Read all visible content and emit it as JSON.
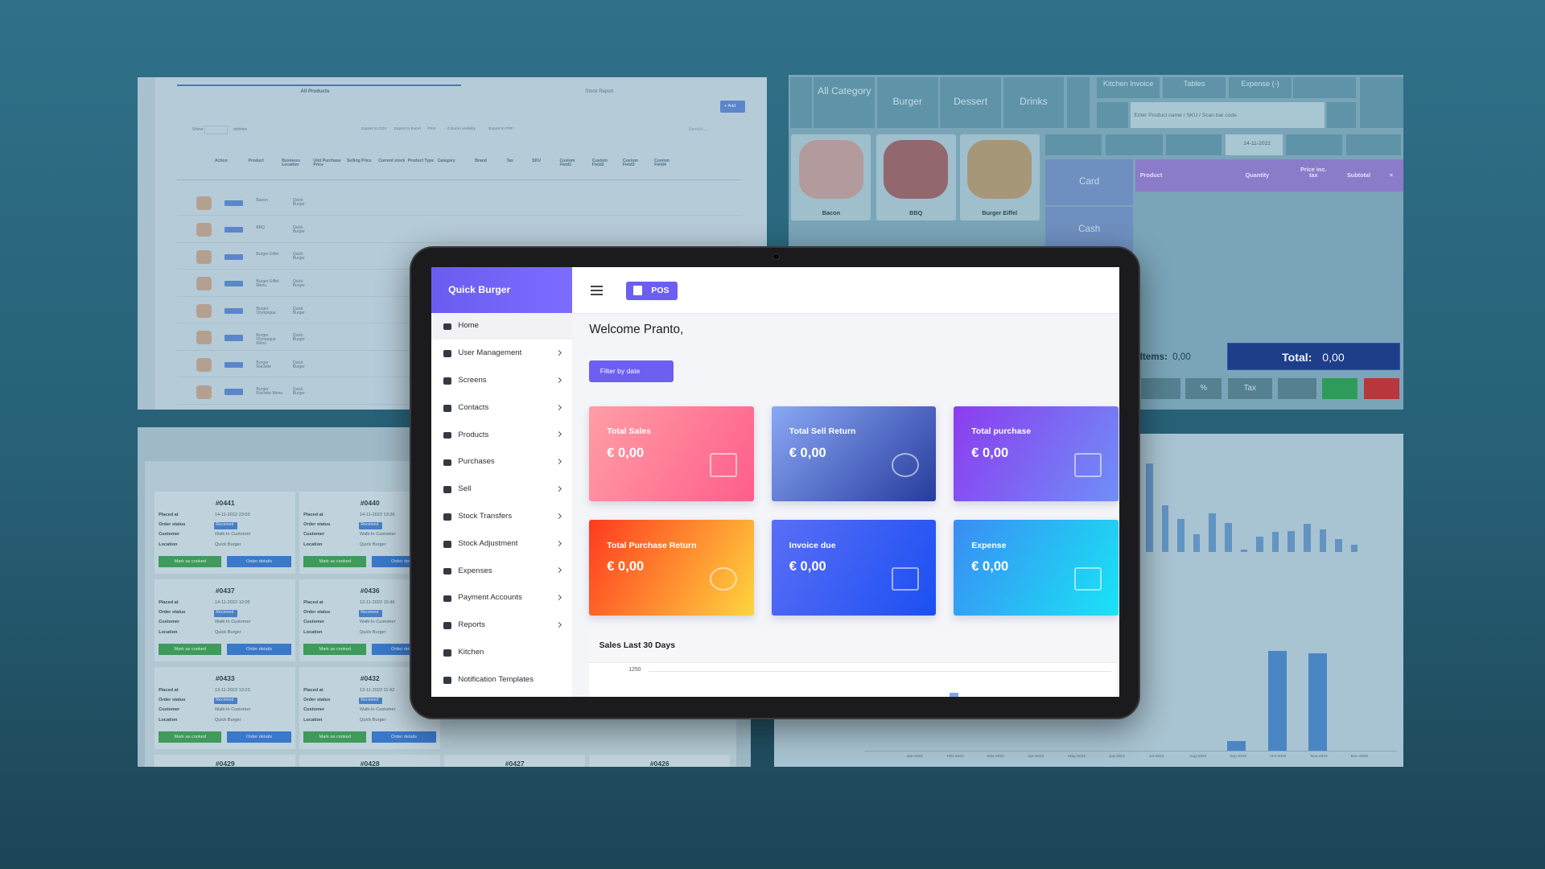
{
  "background_panels": {
    "products": {
      "tabs": [
        "All Products",
        "Stock Report"
      ],
      "add_button": "+ Add",
      "show": "Show",
      "entries": "entries",
      "export": [
        "Export to CSV",
        "Export to Excel",
        "Print",
        "Column visibility",
        "Export to PDF"
      ],
      "search": "Search...",
      "columns": [
        "Action",
        "Product",
        "Business Location",
        "Unit Purchase Price",
        "Selling Price",
        "Current stock",
        "Product Type",
        "Category",
        "Brand",
        "Tax",
        "SKU",
        "Custom Field1",
        "Custom Field2",
        "Custom Field3",
        "Custom Field4"
      ],
      "rows": [
        {
          "product": "Bacon",
          "location": "Quick Burger"
        },
        {
          "product": "BBQ",
          "location": "Quick Burger"
        },
        {
          "product": "Burger Eiffel",
          "location": "Quick Burger"
        },
        {
          "product": "Burger Eiffel Menu",
          "location": "Quick Burger"
        },
        {
          "product": "Burger Olympique",
          "location": "Quick Burger"
        },
        {
          "product": "Burger Olympique Menu",
          "location": "Quick Burger"
        },
        {
          "product": "Burger Raclette",
          "location": "Quick Burger"
        },
        {
          "product": "Burger Raclette Menu",
          "location": "Quick Burger"
        }
      ]
    },
    "pos": {
      "categories": [
        "All Category",
        "Burger",
        "Dessert",
        "Drinks"
      ],
      "top_buttons": [
        "Kitchen Invoice",
        "Tables",
        "Expense (-)"
      ],
      "search_placeholder": "Enter Product name / SKU / Scan bar code",
      "date": "14-11-2022",
      "payment": [
        "Card",
        "Cash"
      ],
      "products": [
        "Bacon",
        "BBQ",
        "Burger Eiffel"
      ],
      "columns": [
        "Product",
        "Quantity",
        "Price inc. tax",
        "Subtotal",
        "×"
      ],
      "items_label": "Items:",
      "items_value": "0,00",
      "total_label": "Total:",
      "total_value": "0,00",
      "tax_button": "Tax",
      "percent_button": "%"
    },
    "orders": {
      "labels": [
        "Placed at",
        "Order status",
        "Customer",
        "Location"
      ],
      "buttons": [
        "Mark as cooked",
        "Order details"
      ],
      "cards": [
        {
          "number": "#0441",
          "placed_at": "14-11-2022 23:03",
          "status": "Received",
          "customer": "Walk-In Customer",
          "location": "Quick Burger"
        },
        {
          "number": "#0440",
          "placed_at": "14-11-2022 13:26",
          "status": "Received",
          "customer": "Walk-In Customer",
          "location": "Quick Burger"
        },
        {
          "number": "#0437",
          "placed_at": "14-11-2022 12:05",
          "status": "Received",
          "customer": "Walk-In Customer",
          "location": "Quick Burger"
        },
        {
          "number": "#0436",
          "placed_at": "13-11-2022 15:46",
          "status": "Received",
          "customer": "Walk-In Customer",
          "location": "Quick Burger"
        },
        {
          "number": "#0433",
          "placed_at": "13-11-2022 13:23",
          "status": "Received",
          "customer": "Walk-In Customer",
          "location": "Quick Burger"
        },
        {
          "number": "#0432",
          "placed_at": "13-11-2022 11:42",
          "status": "Received",
          "customer": "Walk-In Customer",
          "location": "Quick Burger"
        }
      ],
      "next_row": [
        "#0429",
        "#0428",
        "#0427",
        "#0426"
      ]
    },
    "sales_chart": {
      "months": [
        "Jan-2022",
        "Feb-2022",
        "Mar-2022",
        "Apr-2022",
        "May-2022",
        "Jun-2022",
        "Jul-2022",
        "Aug-2022",
        "Sep-2022",
        "Oct-2022",
        "Nov-2022",
        "Dec-2022"
      ]
    }
  },
  "app": {
    "brand": "Quick Burger",
    "pos_button": "POS",
    "sidebar": [
      {
        "label": "Home",
        "submenu": false
      },
      {
        "label": "User Management",
        "submenu": true
      },
      {
        "label": "Screens",
        "submenu": true
      },
      {
        "label": "Contacts",
        "submenu": true
      },
      {
        "label": "Products",
        "submenu": true
      },
      {
        "label": "Purchases",
        "submenu": true
      },
      {
        "label": "Sell",
        "submenu": true
      },
      {
        "label": "Stock Transfers",
        "submenu": true
      },
      {
        "label": "Stock Adjustment",
        "submenu": true
      },
      {
        "label": "Expenses",
        "submenu": true
      },
      {
        "label": "Payment Accounts",
        "submenu": true
      },
      {
        "label": "Reports",
        "submenu": true
      },
      {
        "label": "Kitchen",
        "submenu": false
      },
      {
        "label": "Notification Templates",
        "submenu": false
      }
    ],
    "welcome": "Welcome Pranto,",
    "filter_button": "Filter by date",
    "cards": [
      {
        "title": "Total Sales",
        "value": "€ 0,00"
      },
      {
        "title": "Total Sell Return",
        "value": "€ 0,00"
      },
      {
        "title": "Total purchase",
        "value": "€ 0,00"
      },
      {
        "title": "Total Purchase Return",
        "value": "€ 0,00"
      },
      {
        "title": "Invoice due",
        "value": "€ 0,00"
      },
      {
        "title": "Expense",
        "value": "€ 0,00"
      }
    ],
    "sales_box": {
      "title": "Sales Last 30 Days",
      "top_tick": "1250"
    }
  }
}
